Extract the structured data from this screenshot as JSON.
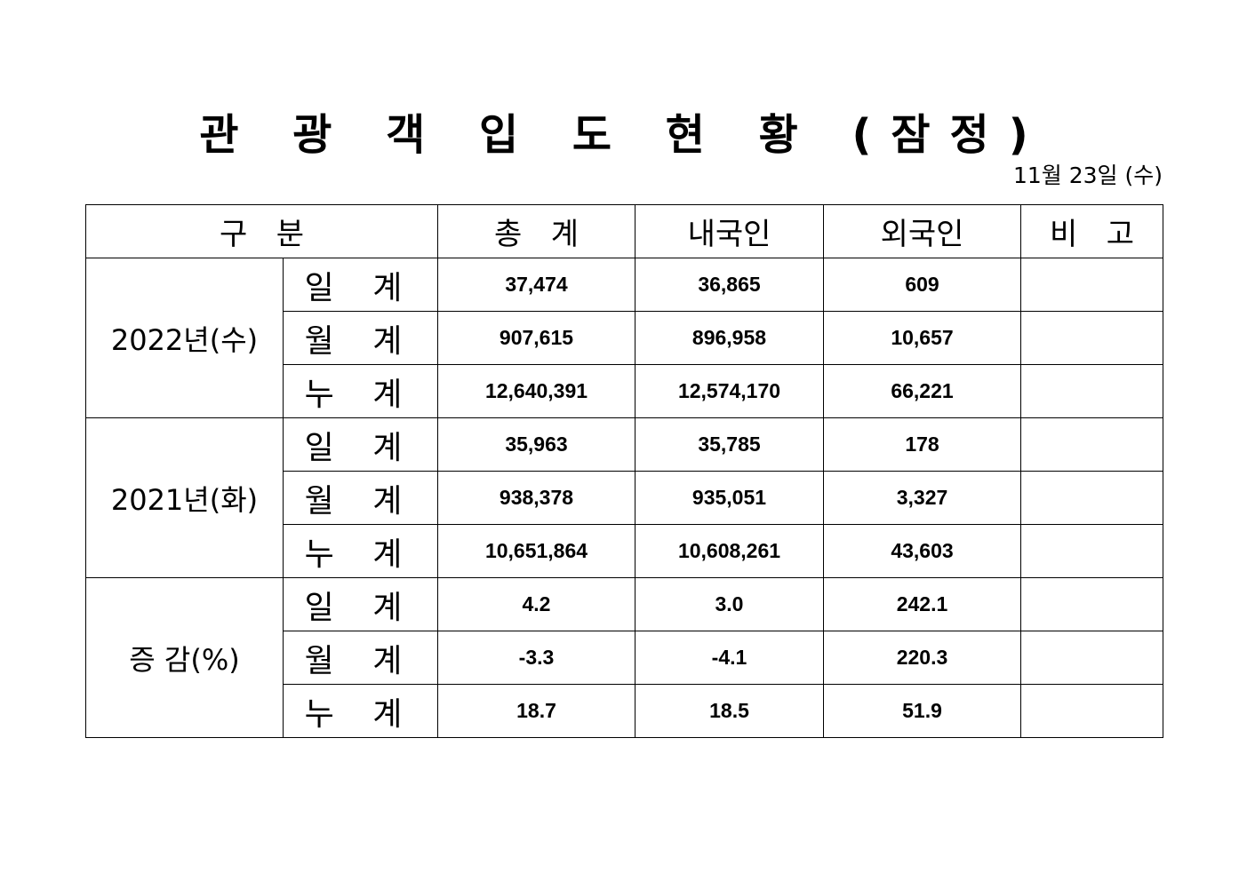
{
  "title": "관 광 객 입 도 현 황 (잠정)",
  "date": "11월 23일 (수)",
  "table": {
    "headers": [
      "구   분",
      "총   계",
      "내국인",
      "외국인",
      "비   고"
    ],
    "groups": [
      {
        "label": "2022년(수)",
        "rows": [
          {
            "label": "일 계",
            "total": "37,474",
            "domestic": "36,865",
            "foreign": "609",
            "note": ""
          },
          {
            "label": "월 계",
            "total": "907,615",
            "domestic": "896,958",
            "foreign": "10,657",
            "note": ""
          },
          {
            "label": "누 계",
            "total": "12,640,391",
            "domestic": "12,574,170",
            "foreign": "66,221",
            "note": ""
          }
        ]
      },
      {
        "label": "2021년(화)",
        "rows": [
          {
            "label": "일 계",
            "total": "35,963",
            "domestic": "35,785",
            "foreign": "178",
            "note": ""
          },
          {
            "label": "월 계",
            "total": "938,378",
            "domestic": "935,051",
            "foreign": "3,327",
            "note": ""
          },
          {
            "label": "누 계",
            "total": "10,651,864",
            "domestic": "10,608,261",
            "foreign": "43,603",
            "note": ""
          }
        ]
      },
      {
        "label": "증 감(%)",
        "rows": [
          {
            "label": "일 계",
            "total": "4.2",
            "domestic": "3.0",
            "foreign": "242.1",
            "note": ""
          },
          {
            "label": "월 계",
            "total": "-3.3",
            "domestic": "-4.1",
            "foreign": "220.3",
            "note": ""
          },
          {
            "label": "누 계",
            "total": "18.7",
            "domestic": "18.5",
            "foreign": "51.9",
            "note": ""
          }
        ]
      }
    ]
  }
}
